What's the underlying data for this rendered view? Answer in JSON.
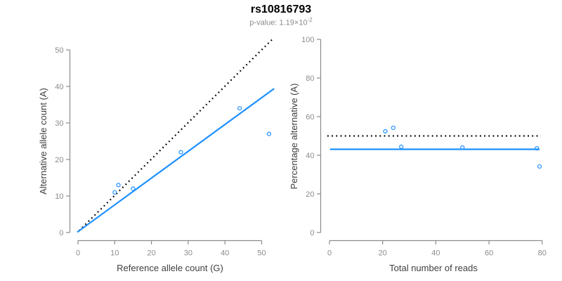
{
  "header": {
    "title": "rs10816793",
    "subtitle_text": "p-value: 1.19×10",
    "subtitle_exponent": "-2"
  },
  "colors": {
    "accent_blue": "#1E90FF",
    "dotted_black": "#000000",
    "axis_gray": "#8c8c8c",
    "axis_title_gray": "#3f3f3f"
  },
  "chart_data": [
    {
      "type": "scatter",
      "name": "allele-counts-plot",
      "xlabel": "Reference allele count (G)",
      "ylabel": "Alternative allele count (A)",
      "xlim": [
        0,
        50
      ],
      "ylim": [
        0,
        50
      ],
      "xticks": [
        0,
        10,
        20,
        30,
        40,
        50
      ],
      "yticks": [
        0,
        10,
        20,
        30,
        40,
        50
      ],
      "grid": false,
      "points": [
        [
          10,
          11
        ],
        [
          11,
          13
        ],
        [
          15,
          12
        ],
        [
          28,
          22
        ],
        [
          44,
          34
        ],
        [
          52,
          27
        ]
      ],
      "lines": [
        {
          "name": "identity-line",
          "style": "dotted",
          "color": "#000000",
          "from": [
            0.3,
            0.5
          ],
          "to": [
            53,
            53
          ]
        },
        {
          "name": "regression-line",
          "style": "solid",
          "color": "#1E90FF",
          "from": [
            -0.2,
            0.1
          ],
          "to": [
            53.4,
            39.4
          ]
        }
      ]
    },
    {
      "type": "scatter",
      "name": "percentage-vs-reads-plot",
      "xlabel": "Total number of reads",
      "ylabel": "Percentage alternative (A)",
      "xlim": [
        0,
        80
      ],
      "ylim": [
        0,
        100
      ],
      "xticks": [
        0,
        20,
        40,
        60,
        80
      ],
      "yticks": [
        0,
        20,
        40,
        60,
        80,
        100
      ],
      "grid": false,
      "points": [
        [
          21,
          52.4
        ],
        [
          24,
          54.2
        ],
        [
          27,
          44.4
        ],
        [
          50,
          44.0
        ],
        [
          78,
          43.6
        ],
        [
          79,
          34.2
        ]
      ],
      "lines": [
        {
          "name": "expected-50pct-line",
          "style": "dotted",
          "color": "#000000",
          "from": [
            -0.8,
            50
          ],
          "to": [
            79.5,
            50
          ]
        },
        {
          "name": "mean-percentage-line",
          "style": "solid",
          "color": "#1E90FF",
          "from": [
            0.2,
            43.1
          ],
          "to": [
            79,
            43.1
          ]
        }
      ]
    }
  ]
}
